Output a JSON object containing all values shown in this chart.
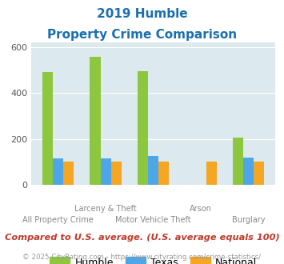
{
  "title_line1": "2019 Humble",
  "title_line2": "Property Crime Comparison",
  "categories": [
    "All Property Crime",
    "Larceny & Theft",
    "Motor Vehicle Theft",
    "Arson",
    "Burglary"
  ],
  "humble_values": [
    490,
    555,
    495,
    0,
    205
  ],
  "texas_values": [
    115,
    115,
    125,
    0,
    120
  ],
  "national_values": [
    100,
    100,
    100,
    100,
    100
  ],
  "humble_color": "#8dc63f",
  "texas_color": "#4da6e8",
  "national_color": "#f5a623",
  "bg_color": "#dce9ef",
  "ylim": [
    0,
    620
  ],
  "yticks": [
    0,
    200,
    400,
    600
  ],
  "title_color": "#1a6fad",
  "footer_text": "Compared to U.S. average. (U.S. average equals 100)",
  "footer_color": "#c0392b",
  "credit_text": "© 2025 CityRating.com - https://www.cityrating.com/crime-statistics/",
  "credit_color": "#999999",
  "legend_labels": [
    "Humble",
    "Texas",
    "National"
  ],
  "label_top": [
    "",
    "Larceny & Theft",
    "",
    "Arson",
    ""
  ],
  "label_bot": [
    "All Property Crime",
    "",
    "Motor Vehicle Theft",
    "",
    "Burglary"
  ]
}
